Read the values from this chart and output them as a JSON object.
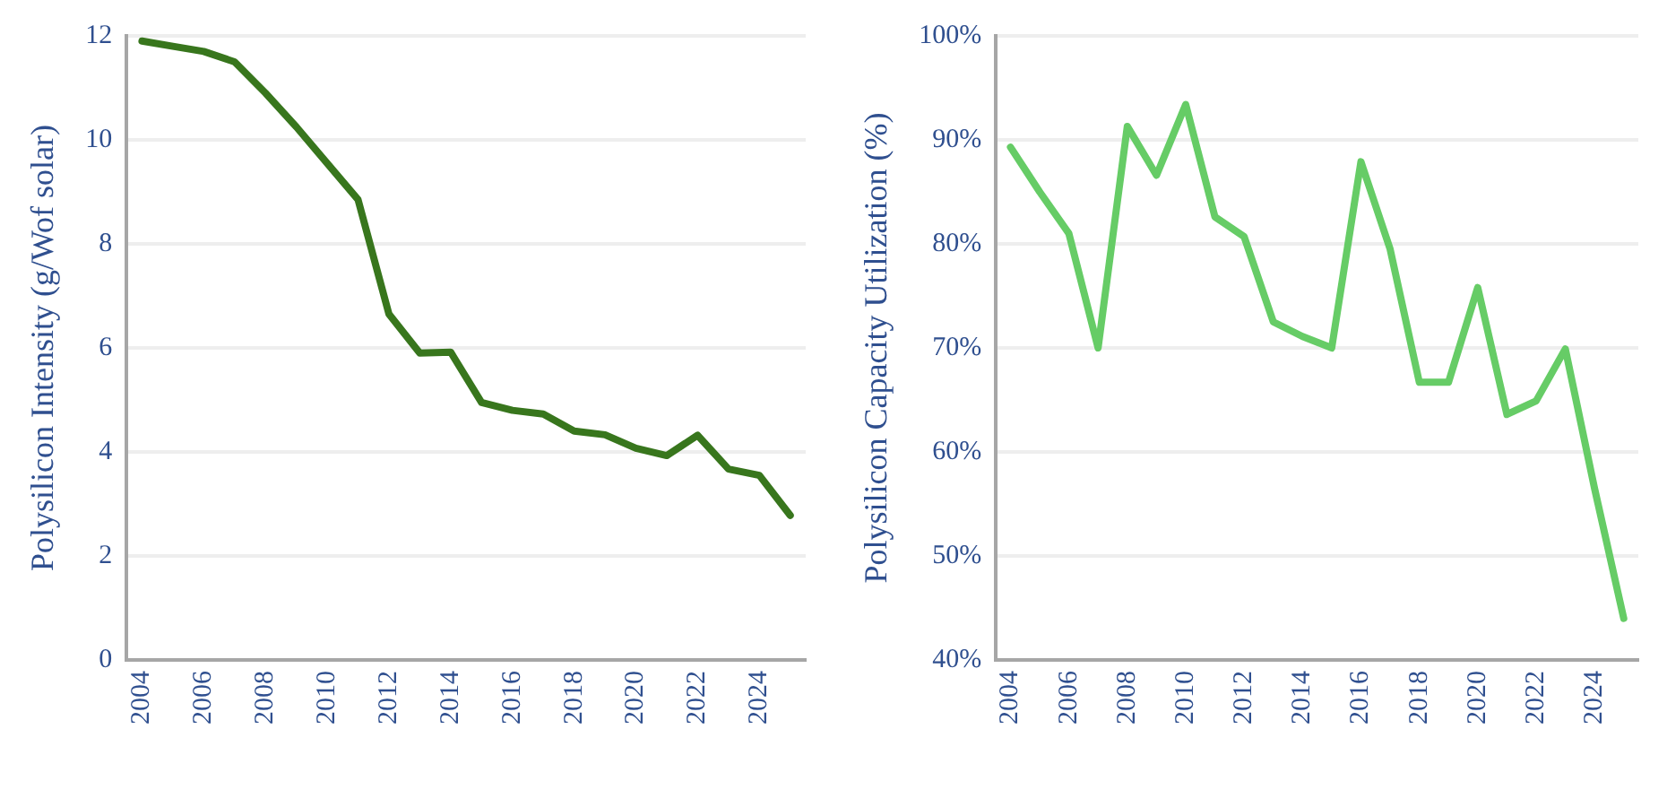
{
  "chart_data": [
    {
      "type": "line",
      "ylabel": "Polysilicon Intensity (g/Wof solar)",
      "categories": [
        "2004",
        null,
        "2006",
        null,
        "2008",
        null,
        "2010",
        null,
        "2012",
        null,
        "2014",
        null,
        "2016",
        null,
        "2018",
        null,
        "2020",
        null,
        "2022",
        null,
        "2024",
        null
      ],
      "series": [
        {
          "color": "#38761d",
          "values": [
            11.9,
            11.8,
            11.7,
            11.5,
            10.9,
            10.25,
            9.55,
            8.85,
            6.65,
            5.9,
            5.92,
            4.95,
            4.8,
            4.73,
            4.4,
            4.33,
            4.07,
            3.93,
            4.32,
            3.67,
            3.55,
            2.78
          ]
        }
      ],
      "ylim": [
        0,
        12
      ],
      "yticks": [
        0,
        2,
        4,
        6,
        8,
        10,
        12
      ],
      "grid": "y",
      "legend": false,
      "marker": "none",
      "line_style": "solid"
    },
    {
      "type": "line",
      "ylabel": "Polysilicon Capacity Utilization (%)",
      "categories": [
        "2004",
        null,
        "2006",
        null,
        "2008",
        null,
        "2010",
        null,
        "2012",
        null,
        "2014",
        null,
        "2016",
        null,
        "2018",
        null,
        "2020",
        null,
        "2022",
        null,
        "2024",
        null
      ],
      "series": [
        {
          "color": "#66cc66",
          "values": [
            89.3,
            85,
            81,
            70,
            91.3,
            86.6,
            93.4,
            82.6,
            80.7,
            72.5,
            71.1,
            70,
            87.9,
            79.5,
            66.7,
            66.7,
            75.8,
            63.6,
            64.9,
            69.9,
            56.5,
            44
          ]
        }
      ],
      "ylim": [
        40,
        100
      ],
      "yticks": [
        {
          "value": 40,
          "label": "40%"
        },
        {
          "value": 50,
          "label": "50%"
        },
        {
          "value": 60,
          "label": "60%"
        },
        {
          "value": 70,
          "label": "70%"
        },
        {
          "value": 80,
          "label": "80%"
        },
        {
          "value": 90,
          "label": "90%"
        },
        {
          "value": 100,
          "label": "100%"
        }
      ],
      "grid": "y",
      "legend": false,
      "marker": "none",
      "line_style": "solid"
    }
  ]
}
